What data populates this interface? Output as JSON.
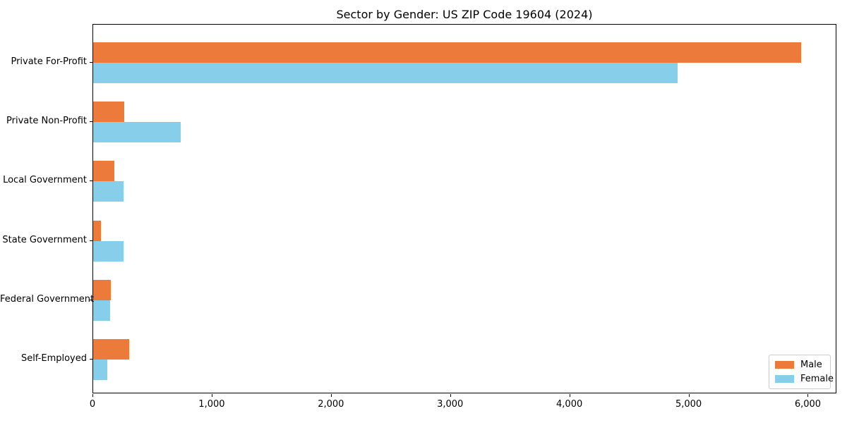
{
  "title": "Sector by Gender: US ZIP Code 19604 (2024)",
  "colors": {
    "male": "#EB7A3B",
    "female": "#87CEEB",
    "spine": "#000000",
    "legend_border": "#CCCCCC",
    "background": "#FFFFFF",
    "text": "#000000"
  },
  "legend": {
    "position": "lower right",
    "male_label": "Male",
    "female_label": "Female"
  },
  "chart_data": {
    "type": "bar",
    "orientation": "horizontal",
    "title": "Sector by Gender: US ZIP Code 19604 (2024)",
    "xlabel": "",
    "ylabel": "",
    "categories": [
      "Private For-Profit",
      "Private Non-Profit",
      "Local Government",
      "State Government",
      "Federal Government",
      "Self-Employed"
    ],
    "series": [
      {
        "name": "Male",
        "color": "#EB7A3B",
        "values": [
          5940,
          260,
          180,
          65,
          150,
          300
        ]
      },
      {
        "name": "Female",
        "color": "#87CEEB",
        "values": [
          4900,
          735,
          255,
          255,
          145,
          120
        ]
      }
    ],
    "xlim": [
      0,
      6240
    ],
    "x_ticks": [
      0,
      1000,
      2000,
      3000,
      4000,
      5000,
      6000
    ],
    "x_tick_labels": [
      "0",
      "1,000",
      "2,000",
      "3,000",
      "4,000",
      "5,000",
      "6,000"
    ],
    "grid": false,
    "legend_position": "lower right"
  }
}
